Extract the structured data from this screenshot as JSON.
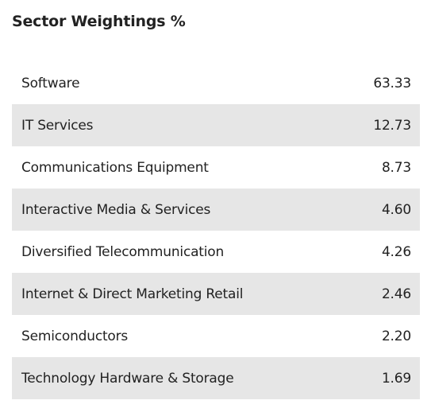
{
  "header": {
    "title": "Sector Weightings %"
  },
  "sectors": [
    {
      "name": "Software",
      "value": "63.33"
    },
    {
      "name": "IT Services",
      "value": "12.73"
    },
    {
      "name": "Communications Equipment",
      "value": "8.73"
    },
    {
      "name": "Interactive Media & Services",
      "value": "4.60"
    },
    {
      "name": "Diversified Telecommunication",
      "value": "4.26"
    },
    {
      "name": "Internet & Direct Marketing Retail",
      "value": "2.46"
    },
    {
      "name": "Semiconductors",
      "value": "2.20"
    },
    {
      "name": "Technology Hardware & Storage",
      "value": "1.69"
    }
  ],
  "colors": {
    "text": "#222222",
    "row_shade": "#e6e6e6",
    "background": "#ffffff"
  }
}
